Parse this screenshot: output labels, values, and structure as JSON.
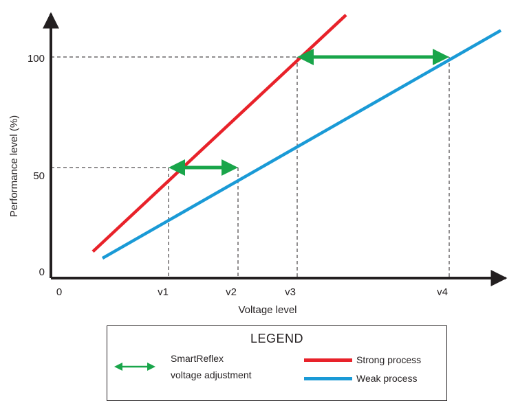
{
  "chart_data": {
    "type": "line",
    "xlabel": "Voltage level",
    "ylabel": "Performance level (%)",
    "x_ticks": [
      "0",
      "v1",
      "v2",
      "v3",
      "v4"
    ],
    "y_ticks": [
      "0",
      "50",
      "100"
    ],
    "series": [
      {
        "name": "Strong process",
        "color": "#e8222a",
        "points": [
          {
            "x": "below 0 to v1",
            "y": 12
          },
          {
            "x": "v1",
            "y": 50
          },
          {
            "x": "v3",
            "y": 100
          },
          {
            "x": "beyond v3",
            "y": 119
          }
        ]
      },
      {
        "name": "Weak process",
        "color": "#1a9ad6",
        "points": [
          {
            "x": "between 0 and v1",
            "y": 9
          },
          {
            "x": "v2",
            "y": 50
          },
          {
            "x": "v4",
            "y": 100
          },
          {
            "x": "beyond v4",
            "y": 112
          }
        ]
      }
    ],
    "annotations": [
      {
        "type": "double-arrow",
        "from_x": "v1",
        "to_x": "v2",
        "y": 50,
        "color": "#19a54a"
      },
      {
        "type": "double-arrow",
        "from_x": "v3",
        "to_x": "v4",
        "y": 100,
        "color": "#19a54a"
      }
    ],
    "grid": false,
    "legend_position": "bottom-center"
  },
  "legend": {
    "title": "LEGEND",
    "adjustment_line1": "SmartReflex",
    "adjustment_line2": "voltage adjustment",
    "strong_label": "Strong process",
    "weak_label": "Weak process"
  }
}
